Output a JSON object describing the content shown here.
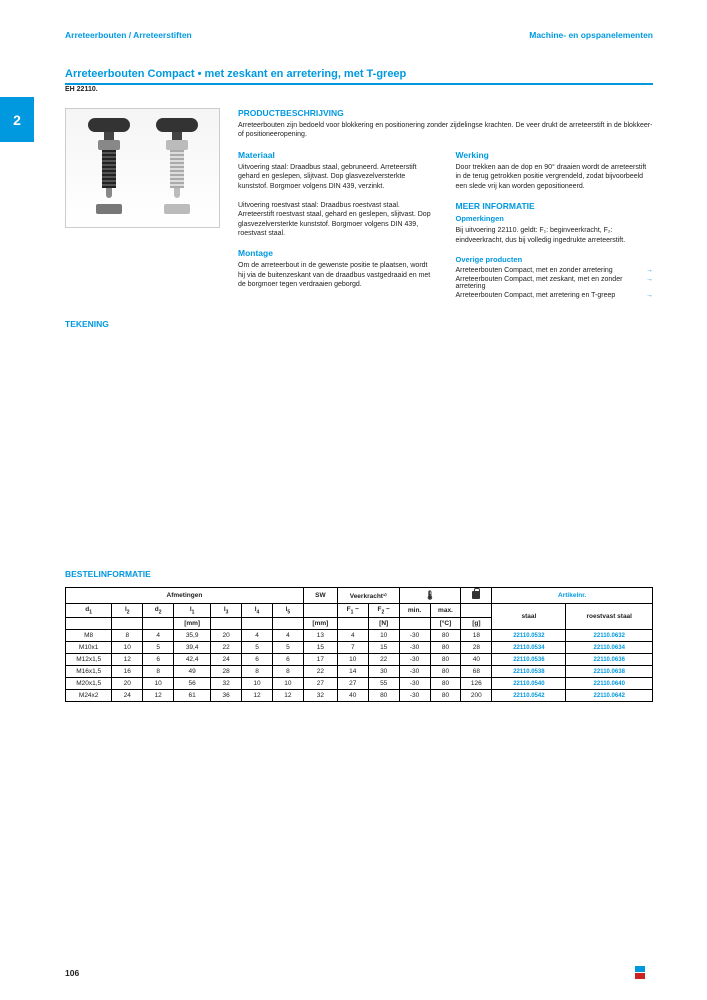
{
  "header": {
    "left": "Arreteerbouten / Arreteerstiften",
    "right": "Machine- en opspanelementen"
  },
  "sidetab": "2",
  "title": "Arreteerbouten Compact • met zeskant en arretering, met T-greep",
  "subtitle": "EH 22110.",
  "sections": {
    "prodbesch": "PRODUCTBESCHRIJVING",
    "materiaal": "Materiaal",
    "werking": "Werking",
    "meerinfo": "MEER INFORMATIE",
    "opmerkingen": "Opmerkingen",
    "montage": "Montage",
    "overige": "Overige producten",
    "tekening": "TEKENING",
    "bestel": "BESTELINFORMATIE"
  },
  "desc": {
    "intro": "Arreteerbouten zijn bedoeld voor blokkering en positionering zonder zijdelingse krachten. De veer drukt de arreteerstift in de blokkeer- of positioneeropening.",
    "materiaal": "Uitvoering staal: Draadbus staal, gebruneerd. Arreteerstift gehard en geslepen, slijtvast. Dop glasvezelversterkte kunststof. Borgmoer volgens DIN 439, verzinkt.\n\nUitvoering roestvast staal: Draadbus roestvast staal. Arreteerstift roestvast staal, gehard en geslepen, slijtvast. Dop glasvezelversterkte kunststof. Borgmoer volgens DIN 439, roestvast staal.",
    "werking": "Door trekken aan de dop en 90° draaien wordt de arreteerstift in de terug getrokken positie vergrendeld, zodat bijvoorbeeld een slede vrij kan worden gepositioneerd.",
    "opmerkingen": "Bij uitvoering 22110. geldt: F₁: beginveerkracht, F₂: eindveerkracht, dus bij volledig ingedrukte arreteerstift.",
    "montage": "Om de arreteerbout in de gewenste positie te plaatsen, wordt hij via de buitenzeskant van de draadbus vastgedraaid en met de borgmoer tegen verdraaien geborgd."
  },
  "overige": [
    "Arreteerbouten Compact, met en zonder arretering",
    "Arreteerbouten Compact, met zeskant, met en zonder arretering",
    "Arreteerbouten Compact, met arretering en T-greep"
  ],
  "table": {
    "group_afm": "Afmetingen",
    "group_sw": "SW",
    "group_veer": "Veerkracht¹⁾",
    "group_art": "Artikelnr.",
    "cols": [
      "d₁",
      "l₂",
      "d₂",
      "l₁",
      "l₃",
      "l₄",
      "l₅",
      "",
      "F₁ ~",
      "F₂ ~",
      "min.",
      "max.",
      "",
      "staal",
      "roestvast staal"
    ],
    "units": [
      "",
      "",
      "",
      "[mm]",
      "",
      "",
      "",
      "[mm]",
      "",
      "[N]",
      "",
      "[°C]",
      "[g]",
      "",
      ""
    ],
    "rows": [
      [
        "M8",
        "8",
        "4",
        "35,9",
        "20",
        "4",
        "4",
        "13",
        "4",
        "10",
        "-30",
        "80",
        "18",
        "22110.0532",
        "22110.0632"
      ],
      [
        "M10x1",
        "10",
        "5",
        "39,4",
        "22",
        "5",
        "5",
        "15",
        "7",
        "15",
        "-30",
        "80",
        "28",
        "22110.0534",
        "22110.0634"
      ],
      [
        "M12x1,5",
        "12",
        "6",
        "42,4",
        "24",
        "6",
        "6",
        "17",
        "10",
        "22",
        "-30",
        "80",
        "40",
        "22110.0536",
        "22110.0636"
      ],
      [
        "M16x1,5",
        "16",
        "8",
        "49",
        "28",
        "8",
        "8",
        "22",
        "14",
        "30",
        "-30",
        "80",
        "68",
        "22110.0538",
        "22110.0638"
      ],
      [
        "M20x1,5",
        "20",
        "10",
        "56",
        "32",
        "10",
        "10",
        "27",
        "27",
        "55",
        "-30",
        "80",
        "126",
        "22110.0540",
        "22110.0640"
      ],
      [
        "M24x2",
        "24",
        "12",
        "61",
        "36",
        "12",
        "12",
        "32",
        "40",
        "80",
        "-30",
        "80",
        "200",
        "22110.0542",
        "22110.0642"
      ]
    ]
  },
  "pagenum": "106"
}
